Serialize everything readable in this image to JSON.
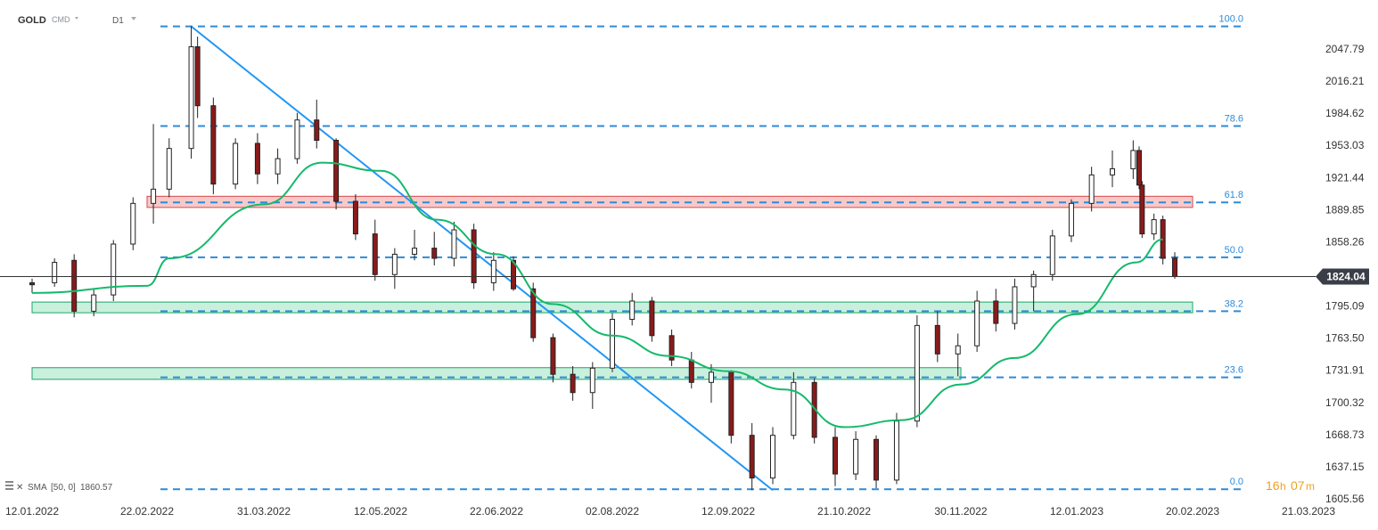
{
  "header": {
    "symbol": "GOLD",
    "instrument_type": "CMD",
    "timeframe": "D1"
  },
  "indicator": {
    "icon": "layers-icon",
    "label": "SMA",
    "params": "[50, 0]",
    "value": "1860.57",
    "color": "#14b96b"
  },
  "timer": {
    "hours": "16",
    "hours_unit": "h",
    "minutes": "07",
    "minutes_unit": "m"
  },
  "current_price": {
    "label": "1824.04",
    "value": 1824.04
  },
  "colors": {
    "bull_candle": "#ffffff",
    "bear_candle": "#8b1a1a",
    "candle_outline": "#222222",
    "fib_line": "#2f8ad8",
    "trendline": "#2196f3",
    "sma": "#14b96b",
    "resistance_zone": "#f7c9c9",
    "support_zone": "#c9f0dc",
    "price_tag": "#3a3f47"
  },
  "chart_data": {
    "type": "candlestick",
    "symbol": "GOLD",
    "timeframe": "D1",
    "y_axis": {
      "ticks": [
        "2047.79",
        "2016.21",
        "1984.62",
        "1953.03",
        "1921.44",
        "1889.85",
        "1858.26",
        "1795.09",
        "1763.50",
        "1731.91",
        "1700.32",
        "1668.73",
        "1637.15",
        "1605.56"
      ],
      "range": [
        1605.56,
        2070.0
      ]
    },
    "x_axis": {
      "ticks": [
        "12.01.2022",
        "22.02.2022",
        "31.03.2022",
        "12.05.2022",
        "22.06.2022",
        "02.08.2022",
        "12.09.2022",
        "21.10.2022",
        "30.11.2022",
        "12.01.2023",
        "20.02.2023",
        "21.03.2023"
      ]
    },
    "fibonacci_levels": [
      {
        "label": "100.0",
        "price": 2070.0
      },
      {
        "label": "78.6",
        "price": 1972.0
      },
      {
        "label": "61.8",
        "price": 1897.0
      },
      {
        "label": "50.0",
        "price": 1843.0
      },
      {
        "label": "38.2",
        "price": 1790.0
      },
      {
        "label": "23.6",
        "price": 1725.0
      },
      {
        "label": "0.0",
        "price": 1615.0
      }
    ],
    "zones": [
      {
        "type": "resistance",
        "price_top": 1903.0,
        "price_bottom": 1892.0,
        "from": "22.02.2022",
        "to": "20.02.2023"
      },
      {
        "type": "support",
        "price_top": 1799.0,
        "price_bottom": 1788.5,
        "from": "12.01.2022",
        "to": "20.02.2023"
      },
      {
        "type": "support",
        "price_top": 1734.5,
        "price_bottom": 1723.0,
        "from": "12.01.2022",
        "to": "30.11.2022"
      }
    ],
    "trendline": {
      "from": {
        "date": "08.03.2022",
        "price": 2070.0
      },
      "to": {
        "date": "27.09.2022",
        "price": 1614.0
      }
    },
    "sma": {
      "name": "SMA [50, 0]",
      "last_value": 1860.57,
      "points": [
        [
          "12.01.2022",
          1808
        ],
        [
          "22.02.2022",
          1815
        ],
        [
          "01.03.2022",
          1842
        ],
        [
          "31.03.2022",
          1895
        ],
        [
          "21.04.2022",
          1936
        ],
        [
          "12.05.2022",
          1928
        ],
        [
          "01.06.2022",
          1880
        ],
        [
          "22.06.2022",
          1846
        ],
        [
          "12.07.2022",
          1797
        ],
        [
          "02.08.2022",
          1766
        ],
        [
          "22.08.2022",
          1746
        ],
        [
          "12.09.2022",
          1731
        ],
        [
          "01.10.2022",
          1713
        ],
        [
          "21.10.2022",
          1676
        ],
        [
          "10.11.2022",
          1683
        ],
        [
          "30.11.2022",
          1718
        ],
        [
          "20.12.2022",
          1744
        ],
        [
          "12.01.2023",
          1787
        ],
        [
          "01.02.2023",
          1838
        ],
        [
          "10.02.2023",
          1860.57
        ]
      ]
    },
    "candles": [
      {
        "t": "12.01.2022",
        "o": 1818,
        "h": 1822,
        "l": 1808,
        "c": 1816
      },
      {
        "t": "20.01.2022",
        "o": 1818,
        "h": 1842,
        "l": 1814,
        "c": 1838
      },
      {
        "t": "27.01.2022",
        "o": 1840,
        "h": 1846,
        "l": 1784,
        "c": 1790
      },
      {
        "t": "03.02.2022",
        "o": 1790,
        "h": 1812,
        "l": 1785,
        "c": 1806
      },
      {
        "t": "10.02.2022",
        "o": 1806,
        "h": 1860,
        "l": 1800,
        "c": 1856
      },
      {
        "t": "17.02.2022",
        "o": 1856,
        "h": 1902,
        "l": 1850,
        "c": 1896
      },
      {
        "t": "24.02.2022",
        "o": 1896,
        "h": 1974,
        "l": 1876,
        "c": 1910
      },
      {
        "t": "01.03.2022",
        "o": 1910,
        "h": 1960,
        "l": 1902,
        "c": 1950
      },
      {
        "t": "08.03.2022",
        "o": 1950,
        "h": 2070,
        "l": 1940,
        "c": 2050
      },
      {
        "t": "10.03.2022",
        "o": 2050,
        "h": 2060,
        "l": 1980,
        "c": 1992
      },
      {
        "t": "15.03.2022",
        "o": 1992,
        "h": 2000,
        "l": 1905,
        "c": 1915
      },
      {
        "t": "22.03.2022",
        "o": 1915,
        "h": 1960,
        "l": 1910,
        "c": 1955
      },
      {
        "t": "29.03.2022",
        "o": 1955,
        "h": 1965,
        "l": 1915,
        "c": 1925
      },
      {
        "t": "05.04.2022",
        "o": 1925,
        "h": 1950,
        "l": 1915,
        "c": 1940
      },
      {
        "t": "12.04.2022",
        "o": 1940,
        "h": 1985,
        "l": 1935,
        "c": 1978
      },
      {
        "t": "19.04.2022",
        "o": 1978,
        "h": 1998,
        "l": 1950,
        "c": 1958
      },
      {
        "t": "26.04.2022",
        "o": 1958,
        "h": 1960,
        "l": 1890,
        "c": 1898
      },
      {
        "t": "03.05.2022",
        "o": 1898,
        "h": 1905,
        "l": 1860,
        "c": 1866
      },
      {
        "t": "10.05.2022",
        "o": 1866,
        "h": 1880,
        "l": 1820,
        "c": 1826
      },
      {
        "t": "17.05.2022",
        "o": 1826,
        "h": 1852,
        "l": 1812,
        "c": 1846
      },
      {
        "t": "24.05.2022",
        "o": 1846,
        "h": 1870,
        "l": 1840,
        "c": 1852
      },
      {
        "t": "31.05.2022",
        "o": 1852,
        "h": 1868,
        "l": 1835,
        "c": 1842
      },
      {
        "t": "07.06.2022",
        "o": 1842,
        "h": 1878,
        "l": 1834,
        "c": 1870
      },
      {
        "t": "14.06.2022",
        "o": 1870,
        "h": 1876,
        "l": 1812,
        "c": 1818
      },
      {
        "t": "21.06.2022",
        "o": 1818,
        "h": 1848,
        "l": 1810,
        "c": 1840
      },
      {
        "t": "28.06.2022",
        "o": 1840,
        "h": 1844,
        "l": 1810,
        "c": 1812
      },
      {
        "t": "05.07.2022",
        "o": 1812,
        "h": 1818,
        "l": 1760,
        "c": 1764
      },
      {
        "t": "12.07.2022",
        "o": 1764,
        "h": 1768,
        "l": 1720,
        "c": 1728
      },
      {
        "t": "19.07.2022",
        "o": 1728,
        "h": 1736,
        "l": 1702,
        "c": 1710
      },
      {
        "t": "26.07.2022",
        "o": 1710,
        "h": 1740,
        "l": 1694,
        "c": 1734
      },
      {
        "t": "02.08.2022",
        "o": 1734,
        "h": 1788,
        "l": 1730,
        "c": 1782
      },
      {
        "t": "09.08.2022",
        "o": 1782,
        "h": 1808,
        "l": 1776,
        "c": 1800
      },
      {
        "t": "16.08.2022",
        "o": 1800,
        "h": 1804,
        "l": 1760,
        "c": 1766
      },
      {
        "t": "23.08.2022",
        "o": 1766,
        "h": 1772,
        "l": 1736,
        "c": 1742
      },
      {
        "t": "30.08.2022",
        "o": 1742,
        "h": 1750,
        "l": 1714,
        "c": 1720
      },
      {
        "t": "06.09.2022",
        "o": 1720,
        "h": 1738,
        "l": 1700,
        "c": 1730
      },
      {
        "t": "13.09.2022",
        "o": 1730,
        "h": 1732,
        "l": 1660,
        "c": 1668
      },
      {
        "t": "20.09.2022",
        "o": 1668,
        "h": 1680,
        "l": 1614,
        "c": 1626
      },
      {
        "t": "27.09.2022",
        "o": 1626,
        "h": 1676,
        "l": 1620,
        "c": 1668
      },
      {
        "t": "04.10.2022",
        "o": 1668,
        "h": 1730,
        "l": 1664,
        "c": 1720
      },
      {
        "t": "11.10.2022",
        "o": 1720,
        "h": 1724,
        "l": 1660,
        "c": 1666
      },
      {
        "t": "18.10.2022",
        "o": 1666,
        "h": 1676,
        "l": 1618,
        "c": 1630
      },
      {
        "t": "25.10.2022",
        "o": 1630,
        "h": 1672,
        "l": 1624,
        "c": 1664
      },
      {
        "t": "01.11.2022",
        "o": 1664,
        "h": 1668,
        "l": 1616,
        "c": 1624
      },
      {
        "t": "08.11.2022",
        "o": 1624,
        "h": 1690,
        "l": 1620,
        "c": 1682
      },
      {
        "t": "15.11.2022",
        "o": 1682,
        "h": 1786,
        "l": 1676,
        "c": 1776
      },
      {
        "t": "22.11.2022",
        "o": 1776,
        "h": 1790,
        "l": 1740,
        "c": 1748
      },
      {
        "t": "29.11.2022",
        "o": 1748,
        "h": 1768,
        "l": 1726,
        "c": 1756
      },
      {
        "t": "06.12.2022",
        "o": 1756,
        "h": 1810,
        "l": 1750,
        "c": 1800
      },
      {
        "t": "13.12.2022",
        "o": 1800,
        "h": 1812,
        "l": 1770,
        "c": 1778
      },
      {
        "t": "20.12.2022",
        "o": 1778,
        "h": 1822,
        "l": 1772,
        "c": 1814
      },
      {
        "t": "27.12.2022",
        "o": 1814,
        "h": 1830,
        "l": 1790,
        "c": 1826
      },
      {
        "t": "03.01.2023",
        "o": 1826,
        "h": 1870,
        "l": 1820,
        "c": 1864
      },
      {
        "t": "10.01.2023",
        "o": 1864,
        "h": 1900,
        "l": 1858,
        "c": 1896
      },
      {
        "t": "17.01.2023",
        "o": 1896,
        "h": 1932,
        "l": 1888,
        "c": 1924
      },
      {
        "t": "24.01.2023",
        "o": 1924,
        "h": 1948,
        "l": 1912,
        "c": 1930
      },
      {
        "t": "31.01.2023",
        "o": 1930,
        "h": 1958,
        "l": 1920,
        "c": 1948
      },
      {
        "t": "02.02.2023",
        "o": 1948,
        "h": 1952,
        "l": 1910,
        "c": 1914
      },
      {
        "t": "03.02.2023",
        "o": 1914,
        "h": 1918,
        "l": 1862,
        "c": 1866
      },
      {
        "t": "07.02.2023",
        "o": 1866,
        "h": 1886,
        "l": 1860,
        "c": 1880
      },
      {
        "t": "10.02.2023",
        "o": 1880,
        "h": 1884,
        "l": 1836,
        "c": 1842
      },
      {
        "t": "14.02.2023",
        "o": 1842,
        "h": 1848,
        "l": 1822,
        "c": 1824.04
      }
    ]
  }
}
